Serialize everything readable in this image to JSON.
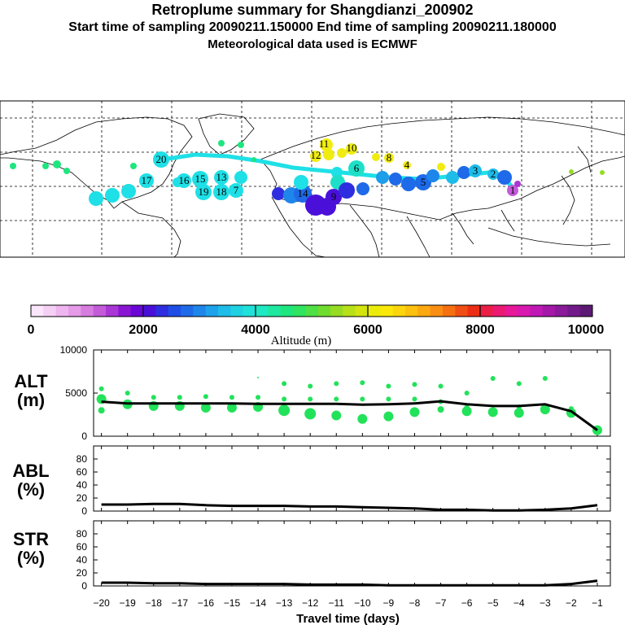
{
  "title": {
    "line1": "Retroplume summary for Shangdianzi_200902",
    "line2": "Start time of sampling 20090211.150000     End time of sampling 20090211.180000",
    "line3": "Meteorological data used is ECMWF"
  },
  "colorbar": {
    "labels": [
      "0",
      "2000",
      "4000",
      "6000",
      "8000",
      "10000"
    ],
    "axis_label": "Altitude (m)",
    "colors": [
      "#fbe6fb",
      "#f5cff5",
      "#efb5ef",
      "#e59be7",
      "#d77ddf",
      "#c45bd9",
      "#aa36d6",
      "#8a16d4",
      "#6a06d6",
      "#4a10da",
      "#2e2ee0",
      "#1f4ee6",
      "#1e6ae8",
      "#1e86ea",
      "#1ea2ec",
      "#1ebce8",
      "#1ed2e2",
      "#1ee2da",
      "#1ee8c2",
      "#1ee8a0",
      "#1ee67e",
      "#2ee460",
      "#4ee044",
      "#70dc30",
      "#96dc22",
      "#b8e018",
      "#d4e410",
      "#ecec0a",
      "#fae80a",
      "#fcd60c",
      "#fcc00e",
      "#fca810",
      "#fa8e12",
      "#f67012",
      "#f04e14",
      "#ec2e16",
      "#ea1e46",
      "#ea1a72",
      "#e8189a",
      "#d818ae",
      "#c018b4",
      "#a418a8",
      "#8a1a9a",
      "#721a8a",
      "#5c1a74"
    ]
  },
  "map": {
    "labels": [
      "11",
      "12",
      "10",
      "8",
      "4",
      "6",
      "5",
      "3",
      "2",
      "1",
      "20",
      "17",
      "16",
      "15",
      "13",
      "19",
      "18",
      "14",
      "9",
      "7"
    ]
  },
  "chart_data": [
    {
      "type": "line",
      "name": "ALT",
      "title": "ALT",
      "ylabel": "(m)",
      "ylim": [
        0,
        10000
      ],
      "yticks": [
        "0",
        "5000",
        "10000"
      ],
      "x": [
        -20,
        -19,
        -18,
        -17,
        -16,
        -15,
        -14,
        -13,
        -12,
        -11,
        -10,
        -9,
        -8,
        -7,
        -6,
        -5,
        -4,
        -3,
        -2,
        -1
      ],
      "series": [
        {
          "name": "mean altitude",
          "values": [
            4000,
            3800,
            3800,
            3800,
            3800,
            3800,
            3750,
            3750,
            3750,
            3750,
            3650,
            3700,
            3800,
            4050,
            3700,
            3500,
            3500,
            3700,
            2900,
            700
          ]
        }
      ],
      "scatter": {
        "name": "particle clusters",
        "x": [
          -20,
          -20,
          -20,
          -19,
          -19,
          -18,
          -18,
          -17,
          -17,
          -16,
          -16,
          -15,
          -15,
          -14,
          -14,
          -14,
          -13,
          -13,
          -13,
          -12,
          -12,
          -12,
          -11,
          -11,
          -11,
          -10,
          -10,
          -10,
          -9,
          -9,
          -9,
          -8,
          -8,
          -8,
          -7,
          -7,
          -7,
          -6,
          -6,
          -6,
          -5,
          -5,
          -4,
          -4,
          -4,
          -3,
          -3,
          -3,
          -2,
          -2,
          -1
        ],
        "y": [
          5500,
          4300,
          3000,
          5000,
          3700,
          4500,
          3500,
          4500,
          3500,
          4600,
          3300,
          4500,
          3300,
          6800,
          4500,
          3400,
          6100,
          4300,
          3000,
          5800,
          4300,
          2600,
          6100,
          4300,
          2400,
          6200,
          4300,
          2000,
          5800,
          4300,
          2300,
          6000,
          4300,
          2800,
          5800,
          4000,
          3100,
          5000,
          3400,
          2900,
          6700,
          2800,
          6100,
          3400,
          2700,
          6700,
          3500,
          3100,
          3200,
          2700,
          700
        ],
        "size": [
          3,
          6,
          4,
          3,
          6,
          3,
          6,
          3,
          6,
          3,
          6,
          3,
          6,
          1,
          3,
          6,
          3,
          3,
          7,
          3,
          3,
          7,
          3,
          3,
          6,
          3,
          3,
          6,
          3,
          3,
          6,
          3,
          3,
          6,
          3,
          3,
          4,
          3,
          3,
          6,
          3,
          6,
          3,
          3,
          6,
          3,
          3,
          6,
          3,
          6,
          6
        ]
      }
    },
    {
      "type": "line",
      "name": "ABL",
      "title": "ABL",
      "ylabel": "(%)",
      "ylim": [
        0,
        100
      ],
      "yticks": [
        "0",
        "20",
        "40",
        "60",
        "80"
      ],
      "x": [
        -20,
        -19,
        -18,
        -17,
        -16,
        -15,
        -14,
        -13,
        -12,
        -11,
        -10,
        -9,
        -8,
        -7,
        -6,
        -5,
        -4,
        -3,
        -2,
        -1
      ],
      "series": [
        {
          "name": "fraction in boundary layer",
          "values": [
            10,
            10,
            11,
            11,
            9,
            8,
            8,
            8,
            7,
            7,
            6,
            5,
            4,
            2,
            2,
            1,
            1,
            2,
            4,
            9
          ]
        }
      ]
    },
    {
      "type": "line",
      "name": "STR",
      "title": "STR",
      "ylabel": "(%)",
      "ylim": [
        0,
        100
      ],
      "yticks": [
        "0",
        "20",
        "40",
        "60",
        "80"
      ],
      "x": [
        -20,
        -19,
        -18,
        -17,
        -16,
        -15,
        -14,
        -13,
        -12,
        -11,
        -10,
        -9,
        -8,
        -7,
        -6,
        -5,
        -4,
        -3,
        -2,
        -1
      ],
      "xlabel": "Travel time (days)",
      "xticks": [
        "−20",
        "−19",
        "−18",
        "−17",
        "−16",
        "−15",
        "−14",
        "−13",
        "−12",
        "−11",
        "−10",
        "−9",
        "−8",
        "−7",
        "−6",
        "−5",
        "−4",
        "−3",
        "−2",
        "−1"
      ],
      "series": [
        {
          "name": "fraction in stratosphere",
          "values": [
            5,
            5,
            4,
            4,
            3,
            3,
            3,
            3,
            2,
            2,
            2,
            1,
            1,
            1,
            1,
            1,
            1,
            1,
            3,
            8
          ]
        }
      ]
    }
  ]
}
